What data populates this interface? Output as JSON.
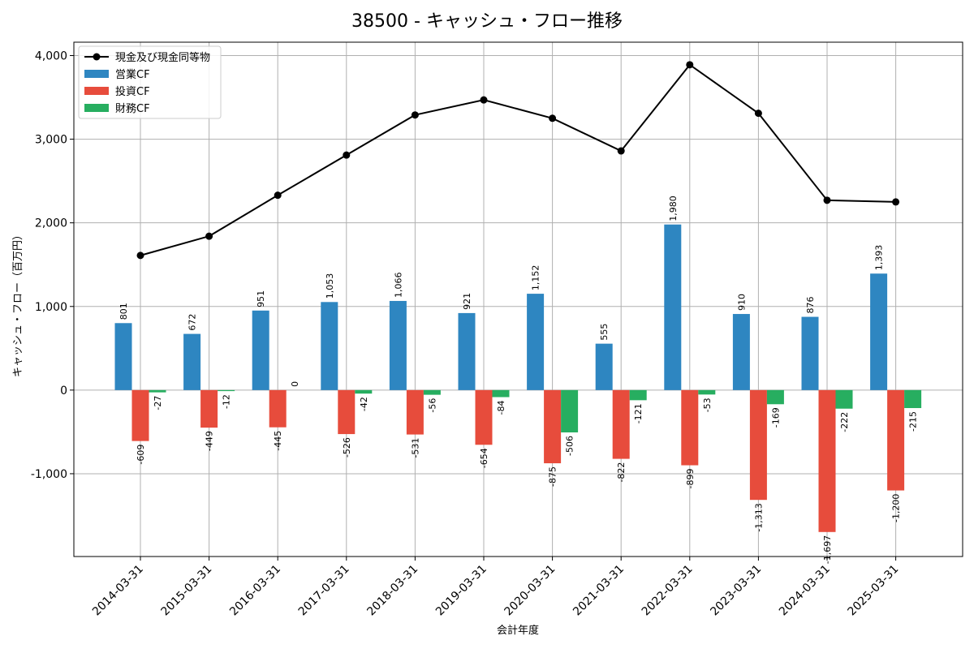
{
  "chart_data": {
    "type": "bar",
    "title": "38500 - キャッシュ・フロー推移",
    "xlabel": "会計年度",
    "ylabel": "キャッシュ・フロー（百万円）",
    "ylim": [
      -1990,
      4160
    ],
    "grid": true,
    "legend_position": "top-left",
    "categories": [
      "2014-03-31",
      "2015-03-31",
      "2016-03-31",
      "2017-03-31",
      "2018-03-31",
      "2019-03-31",
      "2020-03-31",
      "2021-03-31",
      "2022-03-31",
      "2023-03-31",
      "2024-03-31",
      "2025-03-31"
    ],
    "yticks": [
      -1000,
      0,
      1000,
      2000,
      3000,
      4000
    ],
    "ytick_labels": [
      "-1,000",
      "0",
      "1,000",
      "2,000",
      "3,000",
      "4,000"
    ],
    "series": [
      {
        "name": "営業CF",
        "kind": "bar",
        "color": "#2e86c1",
        "values": [
          801,
          672,
          951,
          1053,
          1066,
          921,
          1152,
          555,
          1980,
          910,
          876,
          1393
        ],
        "labels": [
          "801",
          "672",
          "951",
          "1,053",
          "1,066",
          "921",
          "1,152",
          "555",
          "1,980",
          "910",
          "876",
          "1,393"
        ]
      },
      {
        "name": "投資CF",
        "kind": "bar",
        "color": "#e74c3c",
        "values": [
          -609,
          -449,
          -445,
          -526,
          -531,
          -654,
          -875,
          -822,
          -899,
          -1313,
          -1697,
          -1200
        ],
        "labels": [
          "-609",
          "-449",
          "-445",
          "-526",
          "-531",
          "-654",
          "-875",
          "-822",
          "-899",
          "-1,313",
          "-1,697",
          "-1,200"
        ]
      },
      {
        "name": "財務CF",
        "kind": "bar",
        "color": "#27ae60",
        "values": [
          -27,
          -12,
          0,
          -42,
          -56,
          -84,
          -506,
          -121,
          -53,
          -169,
          -222,
          -215
        ],
        "labels": [
          "-27",
          "-12",
          "0",
          "-42",
          "-56",
          "-84",
          "-506",
          "-121",
          "-53",
          "-169",
          "-222",
          "-215"
        ]
      },
      {
        "name": "現金及び現金同等物",
        "kind": "line",
        "color": "#000000",
        "values": [
          1610,
          1840,
          2330,
          2810,
          3290,
          3470,
          3250,
          2860,
          3890,
          3310,
          2270,
          2250
        ]
      }
    ]
  }
}
